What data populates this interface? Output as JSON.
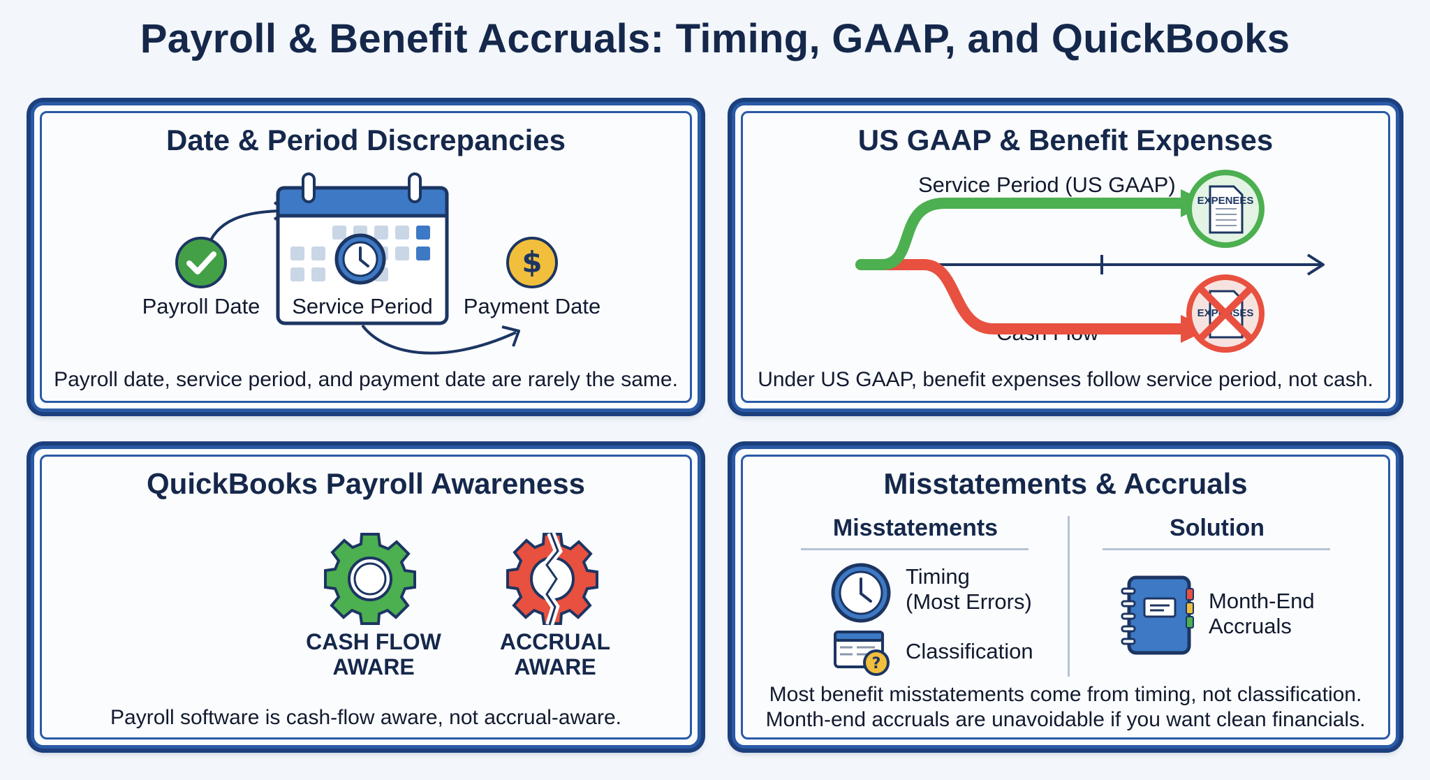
{
  "title": "Payroll & Benefit Accruals: Timing, GAAP, and QuickBooks",
  "panels": {
    "dates": {
      "title": "Date & Period Discrepancies",
      "payroll_date": "Payroll Date",
      "service_period": "Service Period",
      "payment_date": "Payment Date",
      "caption": "Payroll date, service period, and payment date are rarely the same."
    },
    "gaap": {
      "title": "US GAAP & Benefit Expenses",
      "service_label": "Service Period (US GAAP)",
      "cash_label": "Cash Flow",
      "expenses_badge": "EXPENEES",
      "expenses_badge_crossed": "EXPENSES",
      "caption": "Under US GAAP, benefit expenses follow service period, not cash.",
      "colors": {
        "service": "#4caf50",
        "cash": "#e8503f"
      }
    },
    "quickbooks": {
      "title": "QuickBooks Payroll Awareness",
      "cash_flow_line1": "CASH FLOW",
      "cash_flow_line2": "AWARE",
      "accrual_line1": "ACCRUAL",
      "accrual_line2": "AWARE",
      "caption": "Payroll software is cash-flow aware, not accrual-aware."
    },
    "misstatements": {
      "title": "Misstatements & Accruals",
      "left_head": "Misstatements",
      "right_head": "Solution",
      "timing_line1": "Timing",
      "timing_line2": "(Most Errors)",
      "classification": "Classification",
      "accruals_line1": "Month-End",
      "accruals_line2": "Accruals",
      "caption_line1": "Most benefit misstatements come from timing, not classification.",
      "caption_line2": "Month-end accruals are unavoidable if you want clean financials."
    }
  }
}
